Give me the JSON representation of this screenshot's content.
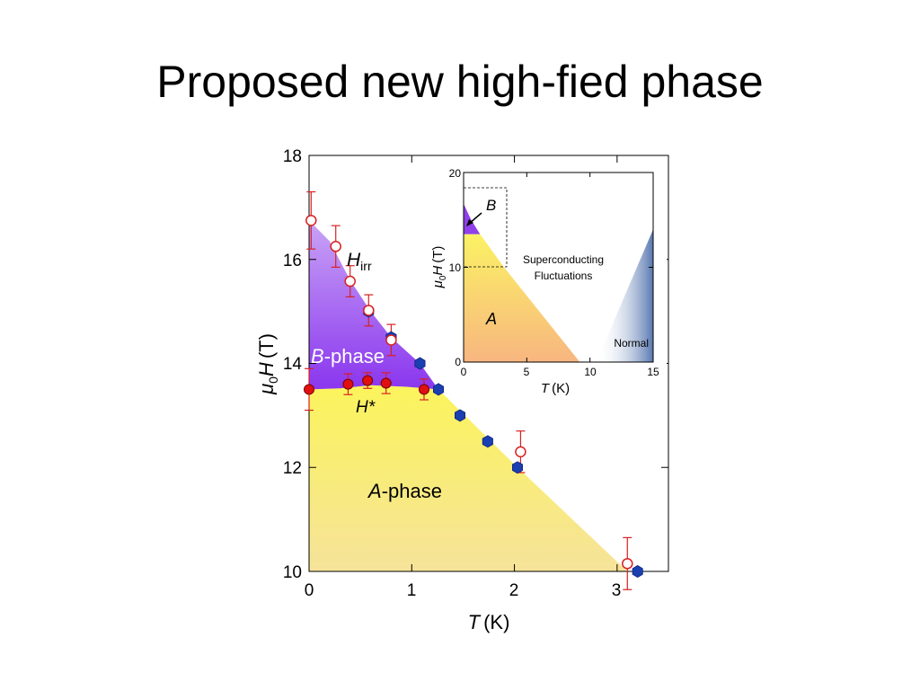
{
  "slide": {
    "title": "Proposed new high-fied phase"
  },
  "chart_data": [
    {
      "type": "scatter",
      "xlabel_var": "T",
      "xlabel_unit": "(K)",
      "ylabel_var": "μ",
      "ylabel_sub": "0",
      "ylabel_var2": "H",
      "ylabel_unit": "(T)",
      "xlim": [
        0,
        3.5
      ],
      "ylim": [
        10,
        18
      ],
      "xticks": [
        "0",
        "1",
        "2",
        "3"
      ],
      "yticks": [
        "10",
        "12",
        "14",
        "16",
        "18"
      ],
      "grid": false,
      "regions": [
        {
          "name": "A-phase",
          "label_italic": "A",
          "label_rest": "-phase",
          "color": "#f5ec6a"
        },
        {
          "name": "B-phase",
          "label_italic": "B",
          "label_rest": "-phase",
          "color": "#9b4df0"
        }
      ],
      "annotations": {
        "hirr_main": "H",
        "hirr_sub": "irr",
        "hstar": "H*"
      },
      "series": [
        {
          "marker": "open-circle",
          "color": "#d92020",
          "x": [
            0.02,
            0.26,
            0.4,
            0.58,
            0.8,
            2.06,
            3.1
          ],
          "y": [
            16.75,
            16.25,
            15.58,
            15.02,
            14.45,
            12.3,
            10.15
          ],
          "err": [
            0.55,
            0.4,
            0.3,
            0.3,
            0.3,
            0.4,
            0.5
          ]
        },
        {
          "marker": "filled-circle",
          "color": "#e01010",
          "x": [
            0.0,
            0.38,
            0.57,
            0.75,
            1.12
          ],
          "y": [
            13.5,
            13.6,
            13.67,
            13.62,
            13.5
          ],
          "err": [
            0.4,
            0.2,
            0.15,
            0.2,
            0.2
          ]
        },
        {
          "marker": "filled-hexagon",
          "color": "#1a3fb0",
          "x": [
            0.58,
            0.8,
            1.08,
            1.26,
            1.47,
            1.74,
            2.03,
            3.2
          ],
          "y": [
            15.0,
            14.5,
            14.0,
            13.5,
            13.0,
            12.5,
            12.0,
            10.0
          ],
          "err": []
        }
      ]
    },
    {
      "type": "area",
      "xlabel_var": "T",
      "xlabel_unit": "(K)",
      "ylabel_var": "μ",
      "ylabel_sub": "0",
      "ylabel_var2": "H",
      "ylabel_unit": "(T)",
      "xlim": [
        0,
        15
      ],
      "ylim": [
        0,
        20
      ],
      "xticks": [
        "0",
        "5",
        "10",
        "15"
      ],
      "yticks": [
        "0",
        "10",
        "20"
      ],
      "labels": {
        "b": "B",
        "a": "A",
        "fluct": [
          "Superconducting",
          "Fluctuations"
        ],
        "normal": "Normal"
      },
      "colors": {
        "a_top": "#fbf264",
        "a_bottom": "#f8b680",
        "b": "#9040e8",
        "normal": "#5878b0"
      }
    }
  ]
}
